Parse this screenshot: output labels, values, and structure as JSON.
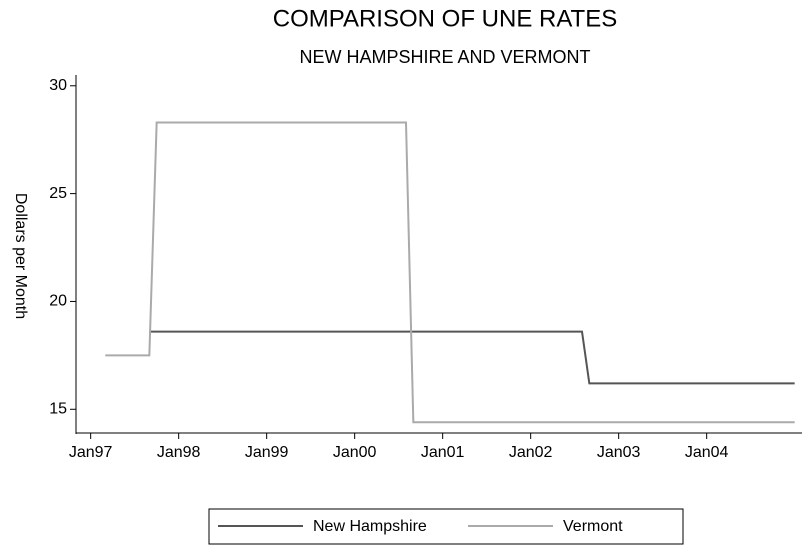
{
  "chart_data": {
    "type": "line",
    "title": "COMPARISON OF UNE RATES",
    "subtitle": "NEW HAMPSHIRE AND VERMONT",
    "y_label": "Dollars per Month",
    "x": [
      "1997-03",
      "1997-09",
      "1997-10",
      "2000-08",
      "2000-09",
      "2002-08",
      "2002-09",
      "2005-01"
    ],
    "series": [
      {
        "name": "New Hampshire",
        "color": "#555555",
        "values": [
          null,
          18.6,
          18.6,
          18.6,
          18.6,
          18.6,
          16.2,
          16.2
        ]
      },
      {
        "name": "Vermont",
        "color": "#aaaaaa",
        "values": [
          17.5,
          17.5,
          28.3,
          28.3,
          14.4,
          14.4,
          14.4,
          14.4
        ]
      }
    ],
    "xlim": [
      "1996-11",
      "2005-02"
    ],
    "xticks": [
      {
        "value": "1997-01",
        "label": "Jan97"
      },
      {
        "value": "1998-01",
        "label": "Jan98"
      },
      {
        "value": "1999-01",
        "label": "Jan99"
      },
      {
        "value": "2000-01",
        "label": "Jan00"
      },
      {
        "value": "2001-01",
        "label": "Jan01"
      },
      {
        "value": "2002-01",
        "label": "Jan02"
      },
      {
        "value": "2003-01",
        "label": "Jan03"
      },
      {
        "value": "2004-01",
        "label": "Jan04"
      }
    ],
    "ylim": [
      13.9,
      30.5
    ],
    "yticks": [
      15,
      20,
      25,
      30
    ],
    "grid": false,
    "legend": "bottom"
  }
}
